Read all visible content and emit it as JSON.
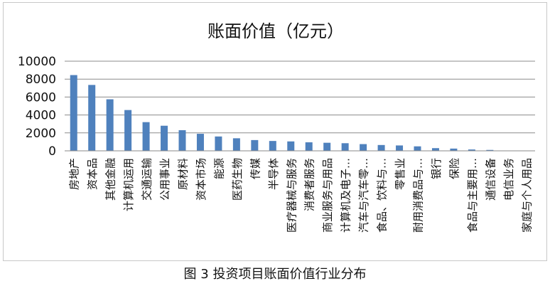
{
  "caption": "图 3  投资项目账面价值行业分布",
  "chart_data": {
    "type": "bar",
    "title": "账面价值（亿元）",
    "xlabel": "",
    "ylabel": "",
    "ylim": [
      0,
      10000
    ],
    "yticks": [
      0,
      2000,
      4000,
      6000,
      8000,
      10000
    ],
    "grid": true,
    "legend": "none",
    "bar_color": "#4f81bd",
    "categories": [
      "房地产",
      "资本品",
      "其他金融",
      "计算机运用",
      "交通运输",
      "公用事业",
      "原材料",
      "资本市场",
      "能源",
      "医药生物",
      "传媒",
      "半导体",
      "医疗器械与服务",
      "消费者服务",
      "商业服务与用品",
      "计算机及电子…",
      "汽车与汽车零…",
      "食品、饮料与…",
      "零售业",
      "耐用消费品与…",
      "银行",
      "保险",
      "食品与主要用…",
      "通信设备",
      "电信业务",
      "家庭与个人用品"
    ],
    "values": [
      8450,
      7350,
      5750,
      4550,
      3200,
      2800,
      2300,
      1900,
      1600,
      1400,
      1200,
      1100,
      1050,
      950,
      900,
      850,
      750,
      650,
      600,
      500,
      300,
      250,
      150,
      100,
      20,
      10
    ]
  }
}
